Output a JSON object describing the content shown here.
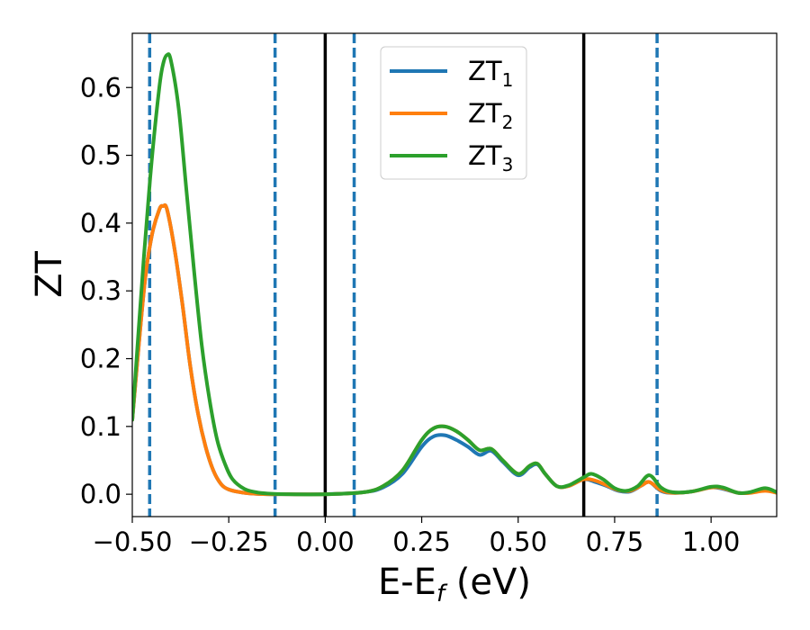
{
  "chart_data": {
    "type": "line",
    "xlabel": "E-E",
    "xlabel_sub": "f",
    "xlabel_unit": " (eV)",
    "ylabel": "ZT",
    "xlim": [
      -0.5,
      1.17
    ],
    "ylim": [
      -0.033,
      0.68
    ],
    "xticks": [
      -0.5,
      -0.25,
      0.0,
      0.25,
      0.5,
      0.75,
      1.0
    ],
    "xtick_labels": [
      "−0.50",
      "−0.25",
      "0.00",
      "0.25",
      "0.50",
      "0.75",
      "1.00"
    ],
    "yticks": [
      0.0,
      0.1,
      0.2,
      0.3,
      0.4,
      0.5,
      0.6
    ],
    "ytick_labels": [
      "0.0",
      "0.1",
      "0.2",
      "0.3",
      "0.4",
      "0.5",
      "0.6"
    ],
    "legend_position": "upper-center",
    "grid": false,
    "vlines_solid": [
      0.0,
      0.67
    ],
    "vlines_dashed": [
      -0.455,
      -0.13,
      0.075,
      0.86
    ],
    "series": [
      {
        "name": "ZT",
        "subscript": "1",
        "color": "#1f77b4",
        "x": [
          -0.5,
          -0.47,
          -0.45,
          -0.43,
          -0.42,
          -0.41,
          -0.39,
          -0.37,
          -0.35,
          -0.33,
          -0.31,
          -0.29,
          -0.27,
          -0.25,
          -0.22,
          -0.19,
          -0.15,
          -0.1,
          0.0,
          0.1,
          0.15,
          0.2,
          0.25,
          0.28,
          0.31,
          0.34,
          0.37,
          0.4,
          0.43,
          0.46,
          0.5,
          0.53,
          0.55,
          0.57,
          0.6,
          0.63,
          0.67,
          0.7,
          0.73,
          0.76,
          0.79,
          0.82,
          0.84,
          0.87,
          0.9,
          0.95,
          1.0,
          1.03,
          1.07,
          1.1,
          1.14,
          1.17
        ],
        "values": [
          0.11,
          0.3,
          0.38,
          0.42,
          0.425,
          0.42,
          0.36,
          0.28,
          0.19,
          0.12,
          0.07,
          0.035,
          0.015,
          0.007,
          0.003,
          0.001,
          0.0,
          0.0,
          0.0,
          0.003,
          0.01,
          0.03,
          0.07,
          0.085,
          0.087,
          0.08,
          0.07,
          0.058,
          0.064,
          0.048,
          0.028,
          0.04,
          0.044,
          0.03,
          0.012,
          0.012,
          0.022,
          0.018,
          0.012,
          0.005,
          0.004,
          0.013,
          0.018,
          0.005,
          0.002,
          0.004,
          0.01,
          0.008,
          0.002,
          0.002,
          0.006,
          0.003
        ]
      },
      {
        "name": "ZT",
        "subscript": "2",
        "color": "#ff7f0e",
        "x": [
          -0.5,
          -0.47,
          -0.45,
          -0.43,
          -0.42,
          -0.41,
          -0.39,
          -0.37,
          -0.35,
          -0.33,
          -0.31,
          -0.29,
          -0.27,
          -0.25,
          -0.22,
          -0.19,
          -0.15,
          -0.1,
          0.0,
          0.1,
          0.15,
          0.2,
          0.25,
          0.28,
          0.31,
          0.34,
          0.37,
          0.4,
          0.43,
          0.46,
          0.5,
          0.53,
          0.55,
          0.57,
          0.6,
          0.63,
          0.67,
          0.7,
          0.73,
          0.76,
          0.79,
          0.82,
          0.84,
          0.87,
          0.9,
          0.95,
          1.0,
          1.03,
          1.07,
          1.1,
          1.14,
          1.17
        ],
        "values": [
          0.11,
          0.3,
          0.38,
          0.42,
          0.425,
          0.42,
          0.36,
          0.28,
          0.19,
          0.12,
          0.07,
          0.035,
          0.015,
          0.007,
          0.003,
          0.001,
          0.0,
          0.0,
          0.0,
          0.003,
          0.012,
          0.035,
          0.08,
          0.097,
          0.1,
          0.093,
          0.08,
          0.065,
          0.067,
          0.05,
          0.03,
          0.042,
          0.045,
          0.03,
          0.012,
          0.012,
          0.022,
          0.02,
          0.013,
          0.006,
          0.005,
          0.013,
          0.018,
          0.006,
          0.002,
          0.004,
          0.01,
          0.009,
          0.002,
          0.002,
          0.005,
          0.002
        ]
      },
      {
        "name": "ZT",
        "subscript": "3",
        "color": "#2ca02c",
        "x": [
          -0.5,
          -0.47,
          -0.45,
          -0.43,
          -0.42,
          -0.41,
          -0.4,
          -0.38,
          -0.36,
          -0.34,
          -0.32,
          -0.3,
          -0.28,
          -0.26,
          -0.24,
          -0.21,
          -0.18,
          -0.15,
          -0.1,
          0.0,
          0.1,
          0.15,
          0.2,
          0.25,
          0.28,
          0.31,
          0.34,
          0.37,
          0.4,
          0.43,
          0.46,
          0.5,
          0.53,
          0.55,
          0.57,
          0.6,
          0.63,
          0.67,
          0.69,
          0.72,
          0.75,
          0.78,
          0.81,
          0.84,
          0.87,
          0.9,
          0.95,
          1.0,
          1.03,
          1.07,
          1.1,
          1.14,
          1.17
        ],
        "values": [
          0.11,
          0.35,
          0.49,
          0.6,
          0.635,
          0.648,
          0.64,
          0.57,
          0.45,
          0.33,
          0.22,
          0.14,
          0.08,
          0.045,
          0.022,
          0.008,
          0.003,
          0.001,
          0.0,
          0.0,
          0.003,
          0.012,
          0.035,
          0.08,
          0.097,
          0.1,
          0.093,
          0.08,
          0.065,
          0.067,
          0.05,
          0.03,
          0.042,
          0.045,
          0.03,
          0.012,
          0.013,
          0.025,
          0.03,
          0.022,
          0.009,
          0.005,
          0.012,
          0.028,
          0.01,
          0.003,
          0.004,
          0.011,
          0.01,
          0.002,
          0.003,
          0.009,
          0.003
        ]
      }
    ]
  }
}
